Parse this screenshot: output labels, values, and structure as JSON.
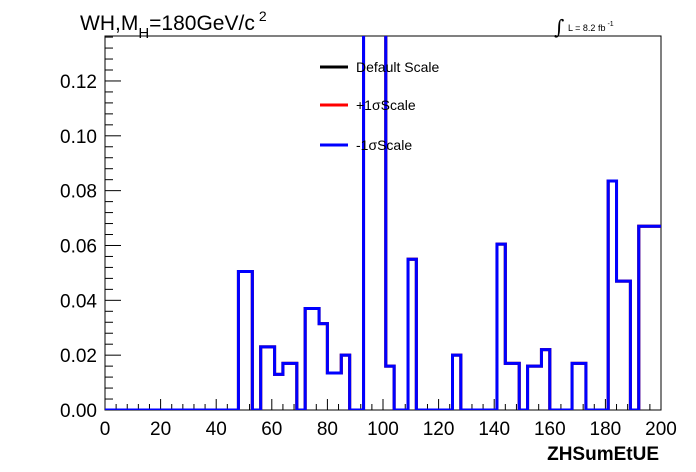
{
  "chart_data": {
    "type": "line",
    "title": {
      "prefix": "WH,M",
      "subscript": "H",
      "main": "=180GeV/c",
      "superscript": "2"
    },
    "lumi": {
      "symbol": "∫",
      "text": "L = 8.2 fb",
      "superscript": "-1"
    },
    "xlabel": "ZHSumEtUE",
    "ylabel": "",
    "xlim": [
      0,
      200
    ],
    "ylim": [
      0,
      0.1364
    ],
    "x_ticks": [
      "0",
      "20",
      "40",
      "60",
      "80",
      "100",
      "120",
      "140",
      "160",
      "180",
      "200"
    ],
    "y_ticks": [
      "0.00",
      "0.02",
      "0.04",
      "0.06",
      "0.08",
      "0.10",
      "0.12"
    ],
    "bin_edges": [
      0,
      48,
      53,
      56,
      61,
      64,
      69,
      72,
      77,
      80,
      85,
      88,
      93,
      96,
      101,
      104,
      109,
      112,
      117,
      120,
      125,
      128,
      133,
      136,
      141,
      144,
      149,
      152,
      157,
      160,
      165,
      168,
      173,
      176,
      181,
      184,
      189,
      192,
      197,
      200
    ],
    "series": [
      {
        "name": "Default Scale",
        "color": "#000000",
        "values": [
          0,
          0.0505,
          0,
          0.023,
          0.013,
          0.017,
          0,
          0.037,
          0.0315,
          0.0135,
          0.02,
          0,
          0.14,
          0.14,
          0.016,
          0,
          0.055,
          0,
          0,
          0,
          0.02,
          0,
          0,
          0,
          0.0605,
          0.017,
          0,
          0.016,
          0.022,
          0,
          0,
          0.017,
          0,
          0,
          0.0835,
          0.047,
          0,
          0.067,
          0.067
        ]
      },
      {
        "name": "+1σScale",
        "color": "#ff0000",
        "values": [
          0,
          0.0505,
          0,
          0.023,
          0.013,
          0.017,
          0,
          0.037,
          0.0315,
          0.0135,
          0.02,
          0,
          0.14,
          0.14,
          0.016,
          0,
          0.055,
          0,
          0,
          0,
          0.02,
          0,
          0,
          0,
          0.0605,
          0.017,
          0,
          0.016,
          0.022,
          0,
          0,
          0.017,
          0,
          0,
          0.0835,
          0.047,
          0,
          0.067,
          0.067
        ]
      },
      {
        "name": "-1σScale",
        "color": "#0000ff",
        "values": [
          0,
          0.0505,
          0,
          0.023,
          0.013,
          0.017,
          0,
          0.037,
          0.0315,
          0.0135,
          0.02,
          0,
          0.14,
          0.14,
          0.016,
          0,
          0.055,
          0,
          0,
          0,
          0.02,
          0,
          0,
          0,
          0.0605,
          0.017,
          0,
          0.016,
          0.022,
          0,
          0,
          0.017,
          0,
          0,
          0.0835,
          0.047,
          0,
          0.067,
          0.067
        ]
      }
    ],
    "legend_position": "top-center",
    "grid": false
  }
}
